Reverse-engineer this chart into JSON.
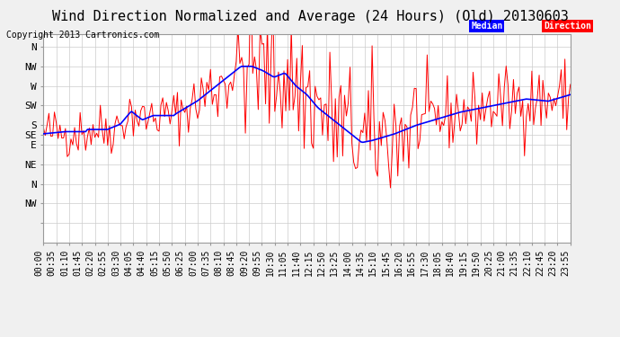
{
  "title": "Wind Direction Normalized and Average (24 Hours) (Old) 20130603",
  "copyright": "Copyright 2013 Cartronics.com",
  "yticks": [
    360,
    315,
    270,
    225,
    180,
    157.5,
    135,
    90,
    45,
    0,
    -45
  ],
  "ylabels": [
    "N",
    "NW",
    "W",
    "SW",
    "S",
    "SE",
    "E",
    "NE",
    "N",
    "NW",
    ""
  ],
  "ylim_min": -90,
  "ylim_max": 390,
  "bg_color": "#f0f0f0",
  "plot_bg_color": "#ffffff",
  "grid_color": "#cccccc",
  "red_color": "#ff0000",
  "blue_color": "#0000ff",
  "legend_median_bg": "#0000ff",
  "legend_direction_bg": "#ff0000",
  "legend_text_color": "#ffffff",
  "title_fontsize": 11,
  "copyright_fontsize": 7,
  "tick_fontsize": 7,
  "ylabel_fontsize": 8,
  "xtick_rotation": 90,
  "num_points": 288
}
